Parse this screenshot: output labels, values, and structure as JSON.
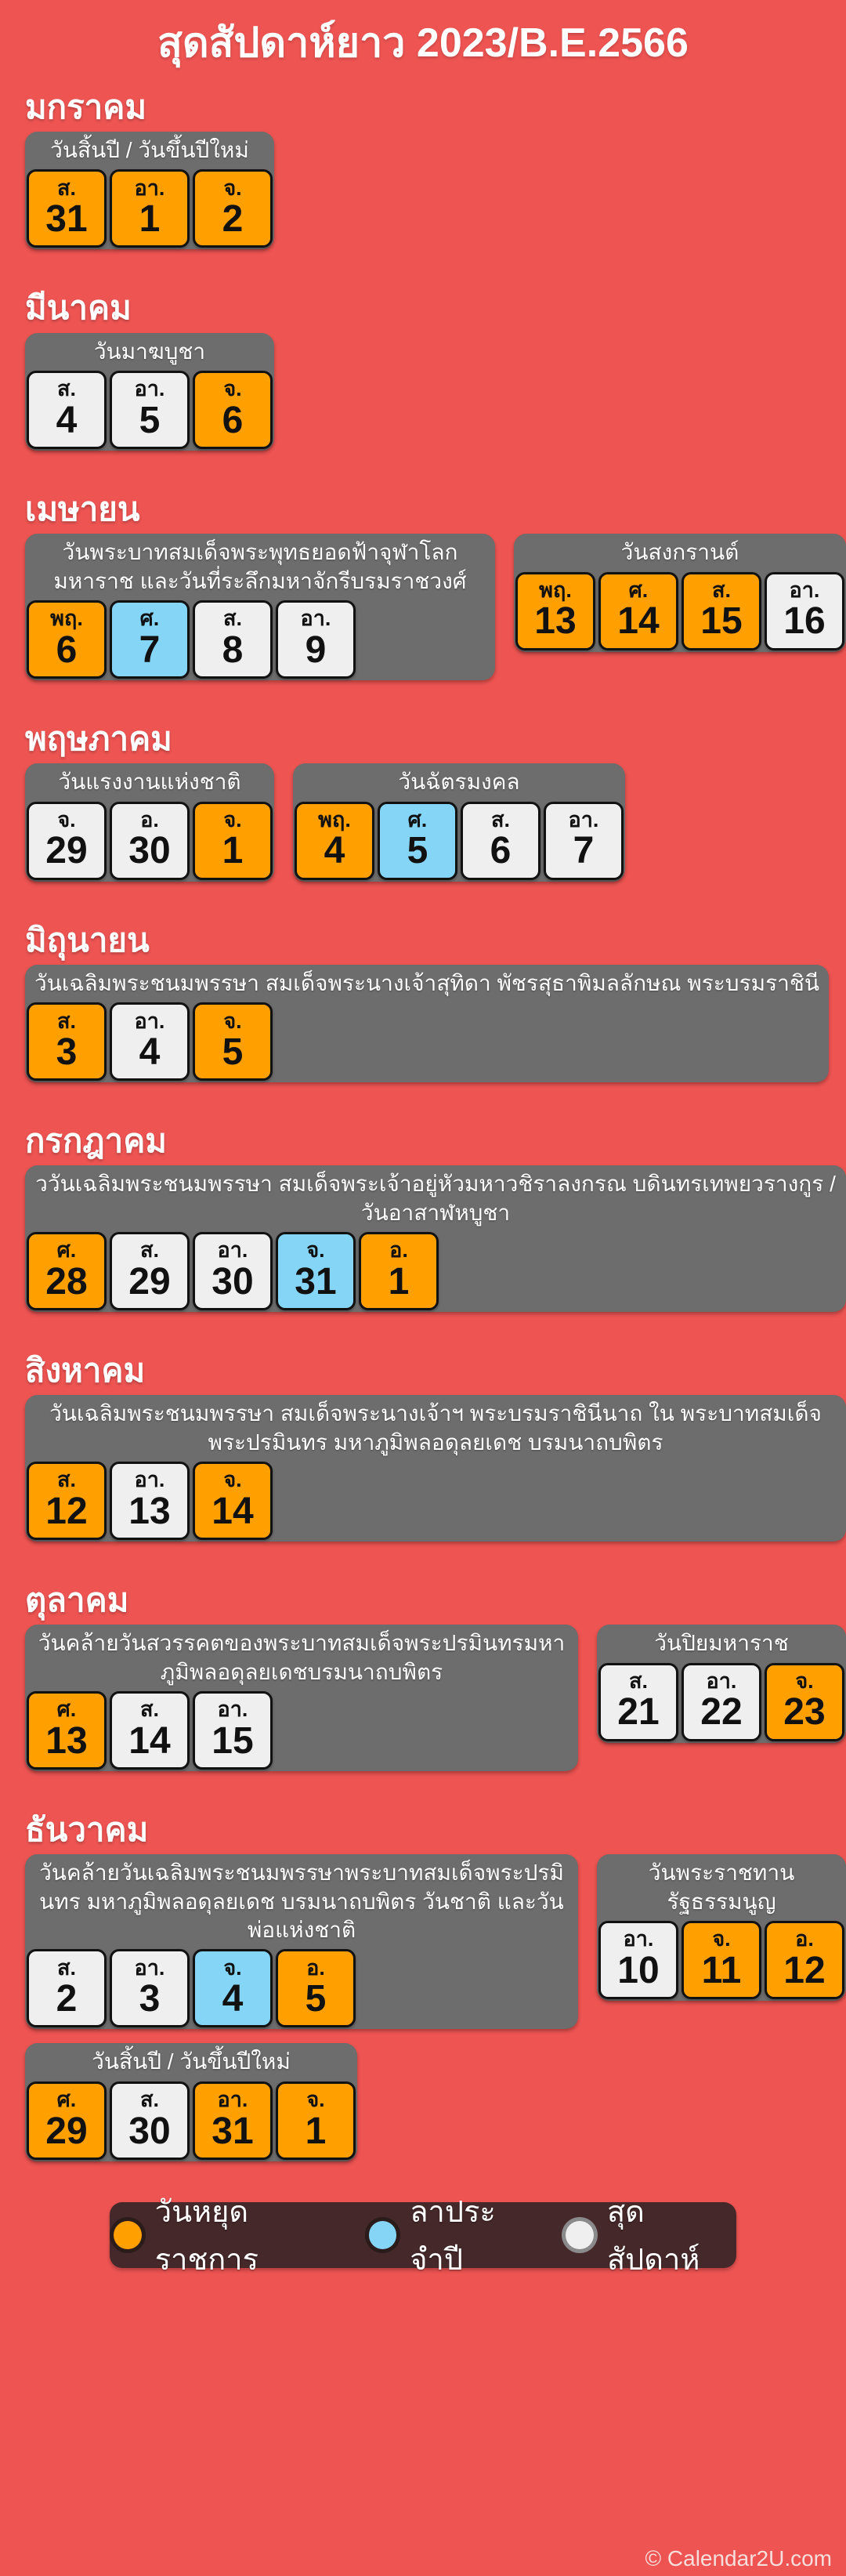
{
  "title": "สุดสัปดาห์ยาว 2023/B.E.2566",
  "colors": {
    "background": "#ED5452",
    "holiday": "#FFA000",
    "leave": "#85D6F6",
    "weekend": "#EFEFEF",
    "label_bar": "#6D6D6D",
    "legend_bar": "#45282A",
    "day_border": "#111111"
  },
  "months": [
    {
      "name": "มกราคม",
      "group_rows": [
        [
          {
            "label": "วันสิ้นปี / วันขึ้นปีใหม่",
            "days": [
              {
                "dow": "ส.",
                "num": "31",
                "type": "holiday"
              },
              {
                "dow": "อา.",
                "num": "1",
                "type": "holiday"
              },
              {
                "dow": "จ.",
                "num": "2",
                "type": "holiday"
              }
            ]
          }
        ]
      ]
    },
    {
      "name": "มีนาคม",
      "group_rows": [
        [
          {
            "label": "วันมาฆบูชา",
            "days": [
              {
                "dow": "ส.",
                "num": "4",
                "type": "weekend"
              },
              {
                "dow": "อา.",
                "num": "5",
                "type": "weekend"
              },
              {
                "dow": "จ.",
                "num": "6",
                "type": "holiday"
              }
            ]
          }
        ]
      ]
    },
    {
      "name": "เมษายน",
      "group_rows": [
        [
          {
            "label": "วันพระบาทสมเด็จพระพุทธยอดฟ้าจุฬาโลกมหาราช และวันที่ระลึกมหาจักรีบรมราชวงศ์",
            "days": [
              {
                "dow": "พฤ.",
                "num": "6",
                "type": "holiday"
              },
              {
                "dow": "ศ.",
                "num": "7",
                "type": "leave"
              },
              {
                "dow": "ส.",
                "num": "8",
                "type": "weekend"
              },
              {
                "dow": "อา.",
                "num": "9",
                "type": "weekend"
              }
            ]
          },
          {
            "label": "วันสงกรานต์",
            "days": [
              {
                "dow": "พฤ.",
                "num": "13",
                "type": "holiday"
              },
              {
                "dow": "ศ.",
                "num": "14",
                "type": "holiday"
              },
              {
                "dow": "ส.",
                "num": "15",
                "type": "holiday"
              },
              {
                "dow": "อา.",
                "num": "16",
                "type": "weekend"
              }
            ]
          }
        ]
      ]
    },
    {
      "name": "พฤษภาคม",
      "group_rows": [
        [
          {
            "label": "วันแรงงานแห่งชาติ",
            "days": [
              {
                "dow": "จ.",
                "num": "29",
                "type": "weekend"
              },
              {
                "dow": "อ.",
                "num": "30",
                "type": "weekend"
              },
              {
                "dow": "จ.",
                "num": "1",
                "type": "holiday"
              }
            ]
          },
          {
            "label": "วันฉัตรมงคล",
            "days": [
              {
                "dow": "พฤ.",
                "num": "4",
                "type": "holiday"
              },
              {
                "dow": "ศ.",
                "num": "5",
                "type": "leave"
              },
              {
                "dow": "ส.",
                "num": "6",
                "type": "weekend"
              },
              {
                "dow": "อา.",
                "num": "7",
                "type": "weekend"
              }
            ]
          }
        ]
      ]
    },
    {
      "name": "มิถุนายน",
      "group_rows": [
        [
          {
            "label": "วันเฉลิมพระชนมพรรษา สมเด็จพระนางเจ้าสุทิดา พัชรสุธาพิมลลักษณ พระบรมราชินี",
            "days": [
              {
                "dow": "ส.",
                "num": "3",
                "type": "holiday"
              },
              {
                "dow": "อา.",
                "num": "4",
                "type": "weekend"
              },
              {
                "dow": "จ.",
                "num": "5",
                "type": "holiday"
              }
            ]
          }
        ]
      ]
    },
    {
      "name": "กรกฎาคม",
      "group_rows": [
        [
          {
            "label": "ววันเฉลิมพระชนมพรรษา สมเด็จพระเจ้าอยู่หัวมหาวชิราลงกรณ บดินทรเทพยวรางกูร / วันอาสาฬหบูชา",
            "days": [
              {
                "dow": "ศ.",
                "num": "28",
                "type": "holiday"
              },
              {
                "dow": "ส.",
                "num": "29",
                "type": "weekend"
              },
              {
                "dow": "อา.",
                "num": "30",
                "type": "weekend"
              },
              {
                "dow": "จ.",
                "num": "31",
                "type": "leave"
              },
              {
                "dow": "อ.",
                "num": "1",
                "type": "holiday"
              }
            ]
          }
        ]
      ]
    },
    {
      "name": "สิงหาคม",
      "group_rows": [
        [
          {
            "label": "วันเฉลิมพระชนมพรรษา สมเด็จพระนางเจ้าฯ พระบรมราชินีนาถ ใน พระบาทสมเด็จพระปรมินทร มหาภูมิพลอดุลยเดช บรมนาถบพิตร",
            "days": [
              {
                "dow": "ส.",
                "num": "12",
                "type": "holiday"
              },
              {
                "dow": "อา.",
                "num": "13",
                "type": "weekend"
              },
              {
                "dow": "จ.",
                "num": "14",
                "type": "holiday"
              }
            ]
          }
        ]
      ]
    },
    {
      "name": "ตุลาคม",
      "group_rows": [
        [
          {
            "label": "วันคล้ายวันสวรรคตของพระบาทสมเด็จพระปรมินทรมหาภูมิพลอดุลยเดชบรมนาถบพิตร",
            "days": [
              {
                "dow": "ศ.",
                "num": "13",
                "type": "holiday"
              },
              {
                "dow": "ส.",
                "num": "14",
                "type": "weekend"
              },
              {
                "dow": "อา.",
                "num": "15",
                "type": "weekend"
              }
            ]
          },
          {
            "label": "วันปิยมหาราช",
            "days": [
              {
                "dow": "ส.",
                "num": "21",
                "type": "weekend"
              },
              {
                "dow": "อา.",
                "num": "22",
                "type": "weekend"
              },
              {
                "dow": "จ.",
                "num": "23",
                "type": "holiday"
              }
            ]
          }
        ]
      ]
    },
    {
      "name": "ธันวาคม",
      "group_rows": [
        [
          {
            "label": "วันคล้ายวันเฉลิมพระชนมพรรษาพระบาทสมเด็จพระปรมินทร มหาภูมิพลอดุลยเดช บรมนาถบพิตร วันชาติ และวันพ่อแห่งชาติ",
            "days": [
              {
                "dow": "ส.",
                "num": "2",
                "type": "weekend"
              },
              {
                "dow": "อา.",
                "num": "3",
                "type": "weekend"
              },
              {
                "dow": "จ.",
                "num": "4",
                "type": "leave"
              },
              {
                "dow": "อ.",
                "num": "5",
                "type": "holiday"
              }
            ]
          },
          {
            "label": "วันพระราชทานรัฐธรรมนูญ",
            "days": [
              {
                "dow": "อา.",
                "num": "10",
                "type": "weekend"
              },
              {
                "dow": "จ.",
                "num": "11",
                "type": "holiday"
              },
              {
                "dow": "อ.",
                "num": "12",
                "type": "holiday"
              }
            ]
          }
        ],
        [
          {
            "label": "วันสิ้นปี / วันขึ้นปีใหม่",
            "days": [
              {
                "dow": "ศ.",
                "num": "29",
                "type": "holiday"
              },
              {
                "dow": "ส.",
                "num": "30",
                "type": "weekend"
              },
              {
                "dow": "อา.",
                "num": "31",
                "type": "holiday"
              },
              {
                "dow": "จ.",
                "num": "1",
                "type": "holiday"
              }
            ]
          }
        ]
      ]
    }
  ],
  "legend": [
    {
      "label": "วันหยุดราชการ",
      "type": "holiday"
    },
    {
      "label": "ลาประจำปี",
      "type": "leave"
    },
    {
      "label": "สุดสัปดาห์",
      "type": "weekend"
    }
  ],
  "footer": "© Calendar2U.com"
}
